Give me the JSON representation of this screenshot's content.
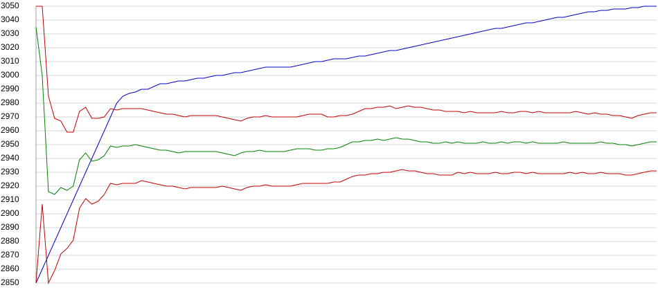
{
  "chart_data": {
    "type": "line",
    "ylim": [
      2850,
      3050
    ],
    "yticks": [
      2850,
      2860,
      2870,
      2880,
      2890,
      2900,
      2910,
      2920,
      2930,
      2940,
      2950,
      2960,
      2970,
      2980,
      2990,
      3000,
      3010,
      3020,
      3030,
      3040,
      3050
    ],
    "grid": true,
    "series": [
      {
        "color": "#0000c0",
        "values": [
          2850,
          2860,
          2870,
          2880,
          2890,
          2900,
          2910,
          2920,
          2930,
          2940,
          2950,
          2960,
          2970,
          2980,
          2985,
          2987,
          2988,
          2990,
          2990,
          2992,
          2994,
          2994,
          2995,
          2996,
          2996,
          2997,
          2998,
          2998,
          2999,
          3000,
          3000,
          3001,
          3002,
          3002,
          3003,
          3004,
          3005,
          3006,
          3006,
          3006,
          3006,
          3006,
          3007,
          3008,
          3009,
          3010,
          3010,
          3011,
          3012,
          3012,
          3012,
          3013,
          3014,
          3014,
          3015,
          3016,
          3017,
          3018,
          3018,
          3019,
          3020,
          3021,
          3022,
          3023,
          3024,
          3025,
          3026,
          3027,
          3028,
          3029,
          3030,
          3031,
          3032,
          3033,
          3034,
          3034,
          3035,
          3036,
          3037,
          3038,
          3038,
          3039,
          3040,
          3041,
          3042,
          3042,
          3043,
          3044,
          3045,
          3046,
          3046,
          3047,
          3047,
          3048,
          3048,
          3048,
          3049,
          3049,
          3050,
          3050,
          3050
        ]
      },
      {
        "color": "#c00000",
        "values": [
          3050,
          3050,
          2985,
          2969,
          2967,
          2959,
          2959,
          2974,
          2977,
          2969,
          2969,
          2970,
          2976,
          2975,
          2976,
          2976,
          2976,
          2976,
          2975,
          2974,
          2973,
          2972,
          2972,
          2971,
          2970,
          2971,
          2971,
          2971,
          2971,
          2971,
          2970,
          2969,
          2968,
          2967,
          2969,
          2970,
          2970,
          2971,
          2970,
          2970,
          2970,
          2970,
          2970,
          2971,
          2972,
          2972,
          2972,
          2970,
          2970,
          2971,
          2971,
          2972,
          2974,
          2976,
          2976,
          2977,
          2977,
          2978,
          2976,
          2977,
          2978,
          2977,
          2977,
          2976,
          2975,
          2975,
          2974,
          2974,
          2974,
          2973,
          2974,
          2973,
          2973,
          2973,
          2973,
          2974,
          2973,
          2973,
          2974,
          2974,
          2973,
          2974,
          2973,
          2973,
          2973,
          2973,
          2973,
          2974,
          2973,
          2972,
          2973,
          2972,
          2972,
          2971,
          2971,
          2970,
          2969,
          2971,
          2972,
          2973,
          2973
        ]
      },
      {
        "color": "#008000",
        "values": [
          3035,
          3000,
          2916,
          2914,
          2919,
          2917,
          2920,
          2939,
          2944,
          2938,
          2939,
          2942,
          2949,
          2948,
          2949,
          2949,
          2950,
          2949,
          2948,
          2947,
          2946,
          2946,
          2945,
          2944,
          2945,
          2945,
          2945,
          2945,
          2945,
          2945,
          2944,
          2943,
          2942,
          2944,
          2945,
          2945,
          2946,
          2945,
          2945,
          2945,
          2945,
          2946,
          2947,
          2947,
          2947,
          2946,
          2946,
          2947,
          2947,
          2948,
          2950,
          2952,
          2952,
          2953,
          2953,
          2954,
          2953,
          2954,
          2955,
          2954,
          2954,
          2953,
          2952,
          2952,
          2951,
          2951,
          2952,
          2951,
          2952,
          2951,
          2951,
          2951,
          2952,
          2951,
          2951,
          2952,
          2951,
          2952,
          2952,
          2951,
          2952,
          2951,
          2951,
          2951,
          2951,
          2952,
          2951,
          2951,
          2951,
          2951,
          2951,
          2952,
          2951,
          2951,
          2950,
          2950,
          2949,
          2950,
          2951,
          2952,
          2952
        ]
      },
      {
        "color": "#c00000",
        "values": [
          2850,
          2907,
          2850,
          2859,
          2871,
          2875,
          2881,
          2904,
          2911,
          2907,
          2909,
          2914,
          2922,
          2921,
          2922,
          2922,
          2922,
          2924,
          2923,
          2922,
          2921,
          2920,
          2920,
          2919,
          2918,
          2919,
          2919,
          2919,
          2919,
          2919,
          2920,
          2919,
          2918,
          2917,
          2919,
          2920,
          2920,
          2921,
          2920,
          2920,
          2920,
          2920,
          2921,
          2922,
          2922,
          2922,
          2922,
          2922,
          2923,
          2923,
          2925,
          2927,
          2928,
          2928,
          2929,
          2929,
          2930,
          2930,
          2931,
          2932,
          2931,
          2931,
          2930,
          2929,
          2929,
          2928,
          2928,
          2928,
          2930,
          2929,
          2930,
          2929,
          2929,
          2929,
          2930,
          2929,
          2929,
          2930,
          2930,
          2929,
          2930,
          2929,
          2929,
          2929,
          2929,
          2929,
          2930,
          2929,
          2930,
          2929,
          2929,
          2930,
          2929,
          2929,
          2929,
          2928,
          2928,
          2929,
          2930,
          2931,
          2931
        ]
      }
    ]
  }
}
